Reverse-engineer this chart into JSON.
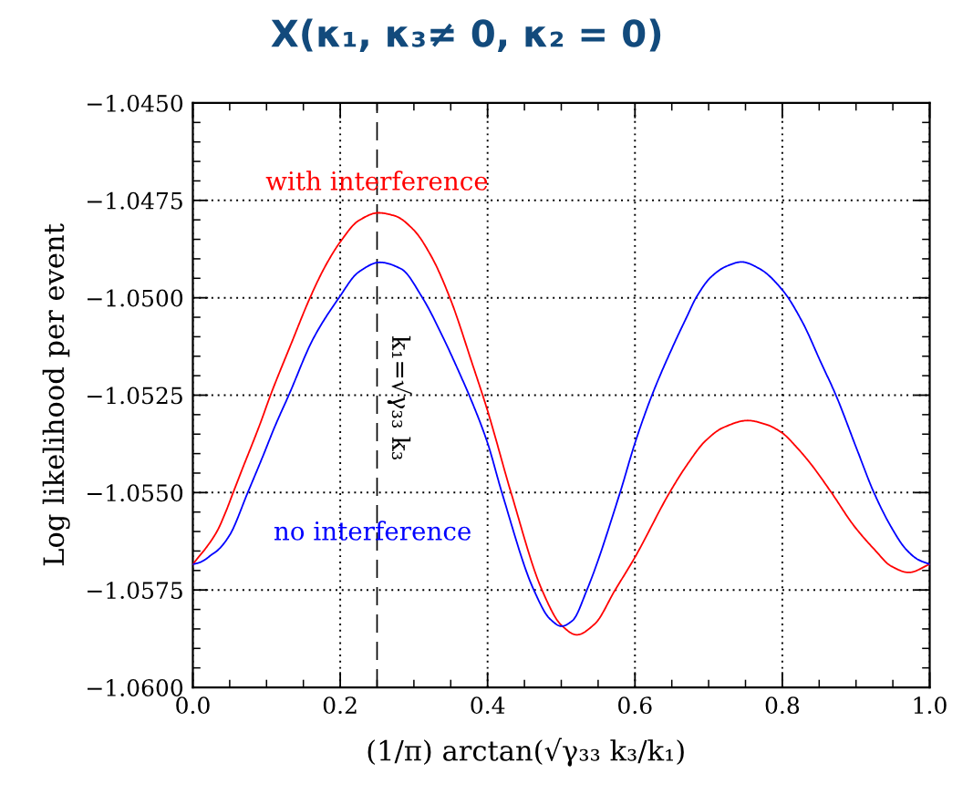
{
  "chart_data": {
    "type": "line",
    "title": "X(κ₁, κ₃≠ 0, κ₂ = 0)",
    "xlabel": "(1/π) arctan(√γ₃₃ k₃/k₁)",
    "ylabel": "Log likelihood per event",
    "xlim": [
      0,
      1
    ],
    "ylim": [
      -1.06,
      -1.045
    ],
    "xticks": [
      {
        "value": 0,
        "label": "0.0"
      },
      {
        "value": 0.2,
        "label": "0.2"
      },
      {
        "value": 0.4,
        "label": "0.4"
      },
      {
        "value": 0.6,
        "label": "0.6"
      },
      {
        "value": 0.8,
        "label": "0.8"
      },
      {
        "value": 1,
        "label": "1.0"
      }
    ],
    "yticks": [
      {
        "value": -1.06,
        "label": "−1.0600"
      },
      {
        "value": -1.0575,
        "label": "−1.0575"
      },
      {
        "value": -1.055,
        "label": "−1.0550"
      },
      {
        "value": -1.0525,
        "label": "−1.0525"
      },
      {
        "value": -1.05,
        "label": "−1.0500"
      },
      {
        "value": -1.0475,
        "label": "−1.0475"
      },
      {
        "value": -1.045,
        "label": "−1.0450"
      }
    ],
    "grid": true,
    "series": [
      {
        "name": "with interference",
        "color": "#ff0000",
        "x": [
          0.0,
          0.0084,
          0.0167,
          0.0332,
          0.0456,
          0.0547,
          0.0662,
          0.091,
          0.1054,
          0.1343,
          0.159,
          0.1797,
          0.2003,
          0.225,
          0.2519,
          0.2745,
          0.2993,
          0.324,
          0.3488,
          0.3797,
          0.4,
          0.4318,
          0.4738,
          0.5,
          0.521,
          0.545,
          0.5731,
          0.6,
          0.647,
          0.6706,
          0.6953,
          0.72,
          0.7531,
          0.7778,
          0.8005,
          0.8191,
          0.8397,
          0.8666,
          0.8975,
          0.9264,
          0.947,
          0.9718,
          1.0
        ],
        "values": [
          -1.05684,
          -1.05664,
          -1.05645,
          -1.05598,
          -1.05545,
          -1.055,
          -1.05444,
          -1.05325,
          -1.0525,
          -1.05114,
          -1.05,
          -1.04919,
          -1.04856,
          -1.04802,
          -1.04782,
          -1.0479,
          -1.04825,
          -1.04895,
          -1.05,
          -1.05172,
          -1.0529,
          -1.055,
          -1.0575,
          -1.0584,
          -1.05865,
          -1.05838,
          -1.0575,
          -1.05666,
          -1.055,
          -1.05429,
          -1.05368,
          -1.05333,
          -1.05315,
          -1.05325,
          -1.05348,
          -1.05383,
          -1.05429,
          -1.055,
          -1.05586,
          -1.05649,
          -1.05688,
          -1.05705,
          -1.05684
        ]
      },
      {
        "name": "no interference",
        "color": "#0000ff",
        "x": [
          0.0,
          0.0084,
          0.0167,
          0.025,
          0.0332,
          0.0497,
          0.0745,
          0.095,
          0.1116,
          0.1302,
          0.1631,
          0.1983,
          0.225,
          0.254,
          0.2828,
          0.3116,
          0.3406,
          0.3653,
          0.375,
          0.4,
          0.4194,
          0.4627,
          0.485,
          0.5002,
          0.515,
          0.5348,
          0.5798,
          0.6,
          0.6231,
          0.6541,
          0.6706,
          0.6829,
          0.7036,
          0.7243,
          0.7448,
          0.7696,
          0.8005,
          0.8274,
          0.8521,
          0.8727,
          0.9016,
          0.9243,
          0.947,
          0.9676,
          0.9842,
          1.0
        ],
        "values": [
          -1.05684,
          -1.0568,
          -1.05672,
          -1.0566,
          -1.05649,
          -1.0561,
          -1.055,
          -1.05407,
          -1.05329,
          -1.0525,
          -1.05106,
          -1.05,
          -1.04934,
          -1.04909,
          -1.04926,
          -1.05,
          -1.05106,
          -1.05208,
          -1.0525,
          -1.05373,
          -1.055,
          -1.0575,
          -1.05825,
          -1.05843,
          -1.05829,
          -1.0575,
          -1.055,
          -1.05373,
          -1.0525,
          -1.05114,
          -1.05048,
          -1.05,
          -1.04946,
          -1.04919,
          -1.04908,
          -1.04926,
          -1.04981,
          -1.05063,
          -1.05165,
          -1.0525,
          -1.05391,
          -1.055,
          -1.05586,
          -1.05645,
          -1.05672,
          -1.05684
        ]
      }
    ],
    "ref_lines": [
      {
        "axis": "x",
        "value": 0.25,
        "label": "k₁=√γ₃₃ k₃",
        "color": "#000000",
        "line_style": "dashed"
      }
    ]
  }
}
